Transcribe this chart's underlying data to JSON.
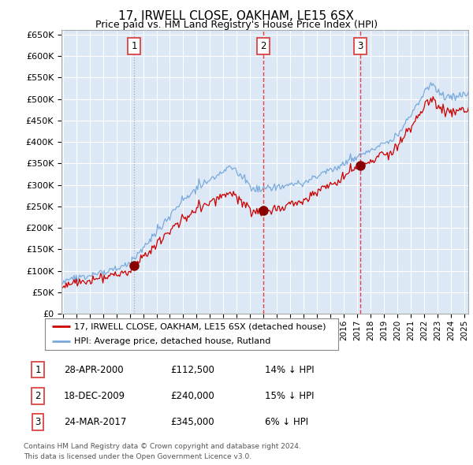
{
  "title": "17, IRWELL CLOSE, OAKHAM, LE15 6SX",
  "subtitle": "Price paid vs. HM Land Registry's House Price Index (HPI)",
  "ylim": [
    0,
    660000
  ],
  "yticks": [
    0,
    50000,
    100000,
    150000,
    200000,
    250000,
    300000,
    350000,
    400000,
    450000,
    500000,
    550000,
    600000,
    650000
  ],
  "xlim_start": 1994.9,
  "xlim_end": 2025.3,
  "sale_dates": [
    2000.32,
    2009.96,
    2017.23
  ],
  "sale_prices": [
    112500,
    240000,
    345000
  ],
  "sale_labels": [
    "1",
    "2",
    "3"
  ],
  "legend_line1": "17, IRWELL CLOSE, OAKHAM, LE15 6SX (detached house)",
  "legend_line2": "HPI: Average price, detached house, Rutland",
  "table_rows": [
    {
      "num": "1",
      "date": "28-APR-2000",
      "price": "£112,500",
      "hpi": "14% ↓ HPI"
    },
    {
      "num": "2",
      "date": "18-DEC-2009",
      "price": "£240,000",
      "hpi": "15% ↓ HPI"
    },
    {
      "num": "3",
      "date": "24-MAR-2017",
      "price": "£345,000",
      "hpi": "6% ↓ HPI"
    }
  ],
  "footnote1": "Contains HM Land Registry data © Crown copyright and database right 2024.",
  "footnote2": "This data is licensed under the Open Government Licence v3.0.",
  "line_color_red": "#cc0000",
  "line_color_blue": "#7aaadd",
  "vline1_color": "#aaaaaa",
  "vline23_color": "#dd4444",
  "dot_color_red": "#880000",
  "chart_bg": "#dce8f5",
  "background_color": "#ffffff",
  "grid_color": "#ffffff",
  "label_box_color": "#dd4444",
  "title_fontsize": 11,
  "subtitle_fontsize": 9
}
